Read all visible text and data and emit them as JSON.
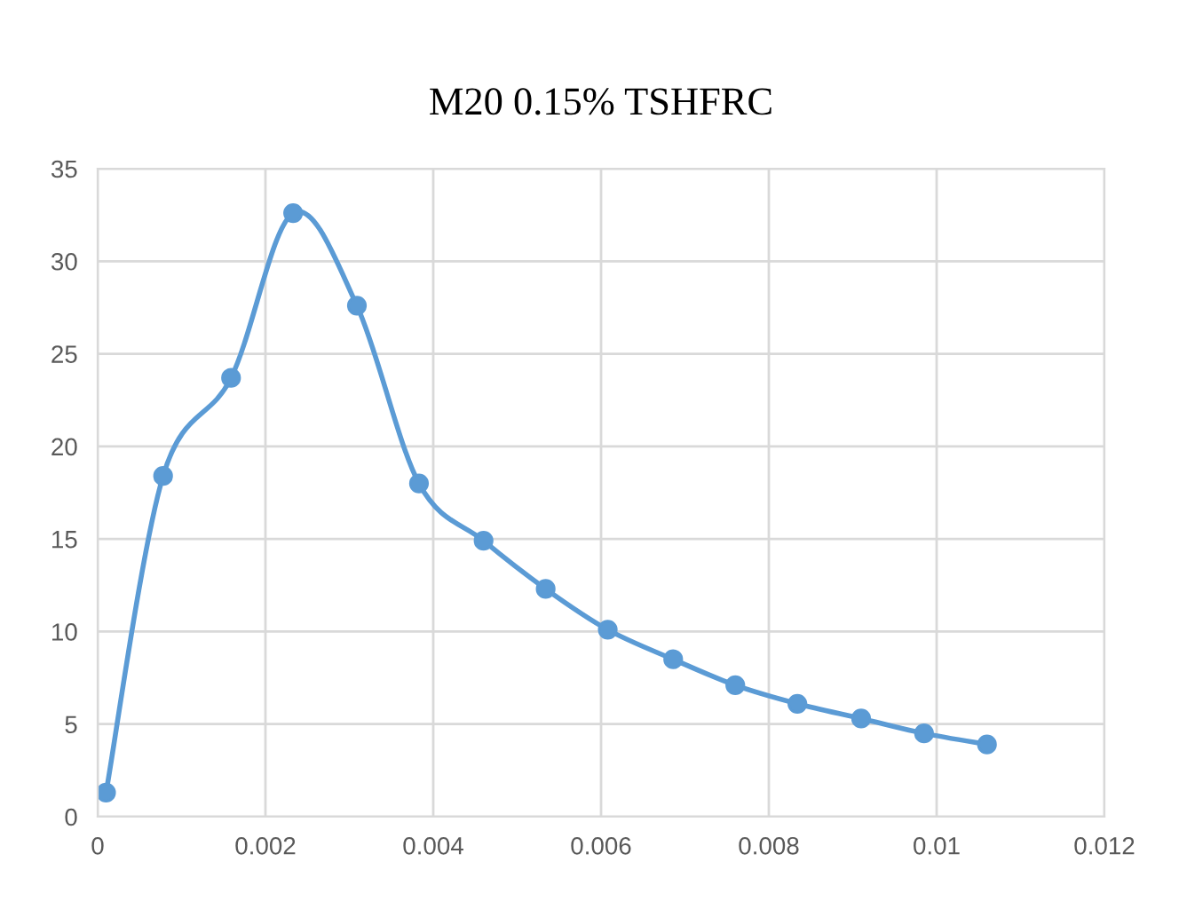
{
  "chart_data": {
    "type": "line",
    "title": "M20 0.15% TSHFRC",
    "x": [
      0.0001,
      0.00078,
      0.00159,
      0.00233,
      0.00309,
      0.00383,
      0.0046,
      0.00534,
      0.00608,
      0.00686,
      0.0076,
      0.00834,
      0.0091,
      0.00985,
      0.0106
    ],
    "series": [
      {
        "color": "#5b9bd5",
        "values": [
          1.3,
          18.4,
          23.7,
          32.6,
          27.6,
          18.0,
          14.9,
          12.3,
          10.1,
          8.5,
          7.1,
          6.1,
          5.3,
          4.5,
          3.9
        ]
      }
    ],
    "xlim": [
      0,
      0.012
    ],
    "xticks": [
      0,
      0.002,
      0.004,
      0.006,
      0.008,
      0.01,
      0.012
    ],
    "ylim": [
      0,
      35
    ],
    "yticks": [
      0,
      5,
      10,
      15,
      20,
      25,
      30,
      35
    ],
    "grid": true,
    "marker": "circle",
    "line_style": "solid"
  }
}
